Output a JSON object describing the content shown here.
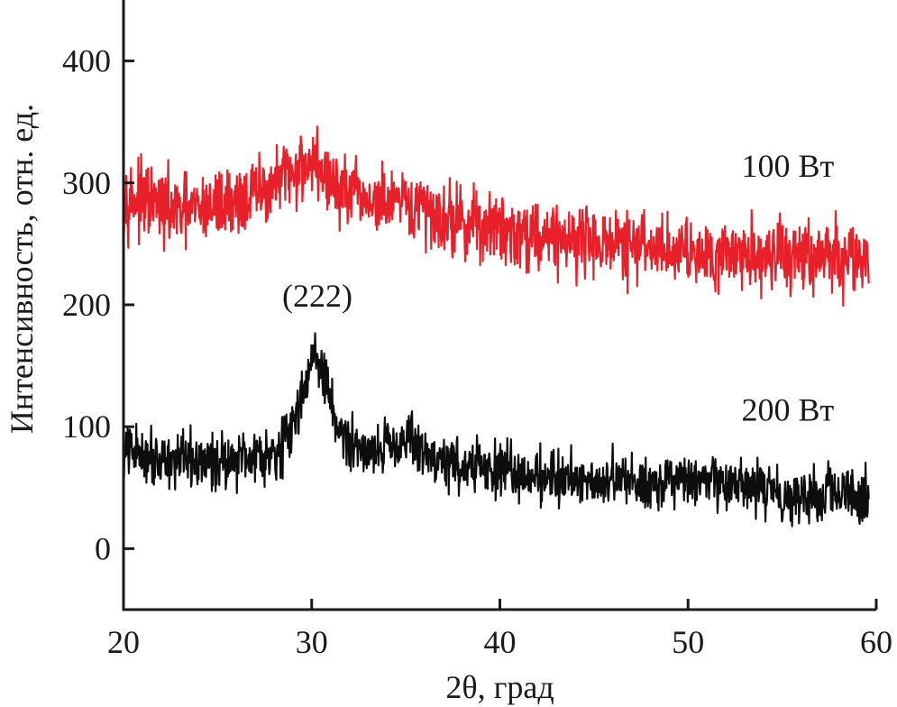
{
  "chart_data": {
    "type": "line",
    "xlabel": "2θ, град",
    "ylabel": "Интенсивность, отн. ед.",
    "xlim": [
      20,
      60
    ],
    "ylim": [
      -50,
      450
    ],
    "x_ticks": [
      20,
      30,
      40,
      50,
      60
    ],
    "y_ticks": [
      0,
      100,
      200,
      300,
      400
    ],
    "grid": false,
    "annotations": [
      {
        "text": "(222)",
        "x": 30.3,
        "y": 200
      }
    ],
    "series": [
      {
        "name": "100 Вт",
        "color": "#e8202a",
        "label_at": {
          "x": 55.3,
          "y": 305
        },
        "x": [
          20,
          21,
          22,
          23,
          24,
          25,
          26,
          27,
          28,
          29,
          29.5,
          30,
          30.5,
          31,
          32,
          33,
          34,
          35,
          36,
          37,
          38,
          39,
          40,
          41,
          42,
          43,
          44,
          45,
          46,
          47,
          48,
          49,
          50,
          51,
          52,
          53,
          54,
          55,
          56,
          57,
          58,
          59,
          59.6
        ],
        "values": [
          290,
          285,
          280,
          275,
          278,
          282,
          285,
          290,
          298,
          308,
          315,
          318,
          310,
          300,
          290,
          285,
          282,
          280,
          278,
          272,
          268,
          265,
          262,
          260,
          258,
          256,
          255,
          253,
          250,
          248,
          247,
          246,
          245,
          244,
          243,
          242,
          241,
          240,
          240,
          239,
          239,
          238,
          238
        ],
        "noise": 18
      },
      {
        "name": "200 Вт",
        "color": "#0d0d0d",
        "label_at": {
          "x": 55.3,
          "y": 105
        },
        "x": [
          20,
          21,
          22,
          23,
          24,
          25,
          26,
          27,
          28,
          28.5,
          29,
          29.5,
          30,
          30.5,
          31,
          31.5,
          32,
          33,
          34,
          35,
          36,
          37,
          38,
          39,
          40,
          41,
          42,
          43,
          44,
          45,
          46,
          47,
          48,
          49,
          50,
          51,
          52,
          53,
          54,
          55,
          56,
          57,
          58,
          59,
          59.6
        ],
        "values": [
          80,
          78,
          75,
          72,
          70,
          72,
          75,
          78,
          80,
          85,
          100,
          130,
          155,
          150,
          120,
          95,
          85,
          82,
          85,
          92,
          78,
          72,
          68,
          66,
          64,
          62,
          60,
          59,
          58,
          57,
          56,
          55,
          55,
          54,
          54,
          53,
          52,
          50,
          48,
          46,
          45,
          44,
          43,
          42,
          42
        ],
        "noise": 14
      }
    ]
  }
}
